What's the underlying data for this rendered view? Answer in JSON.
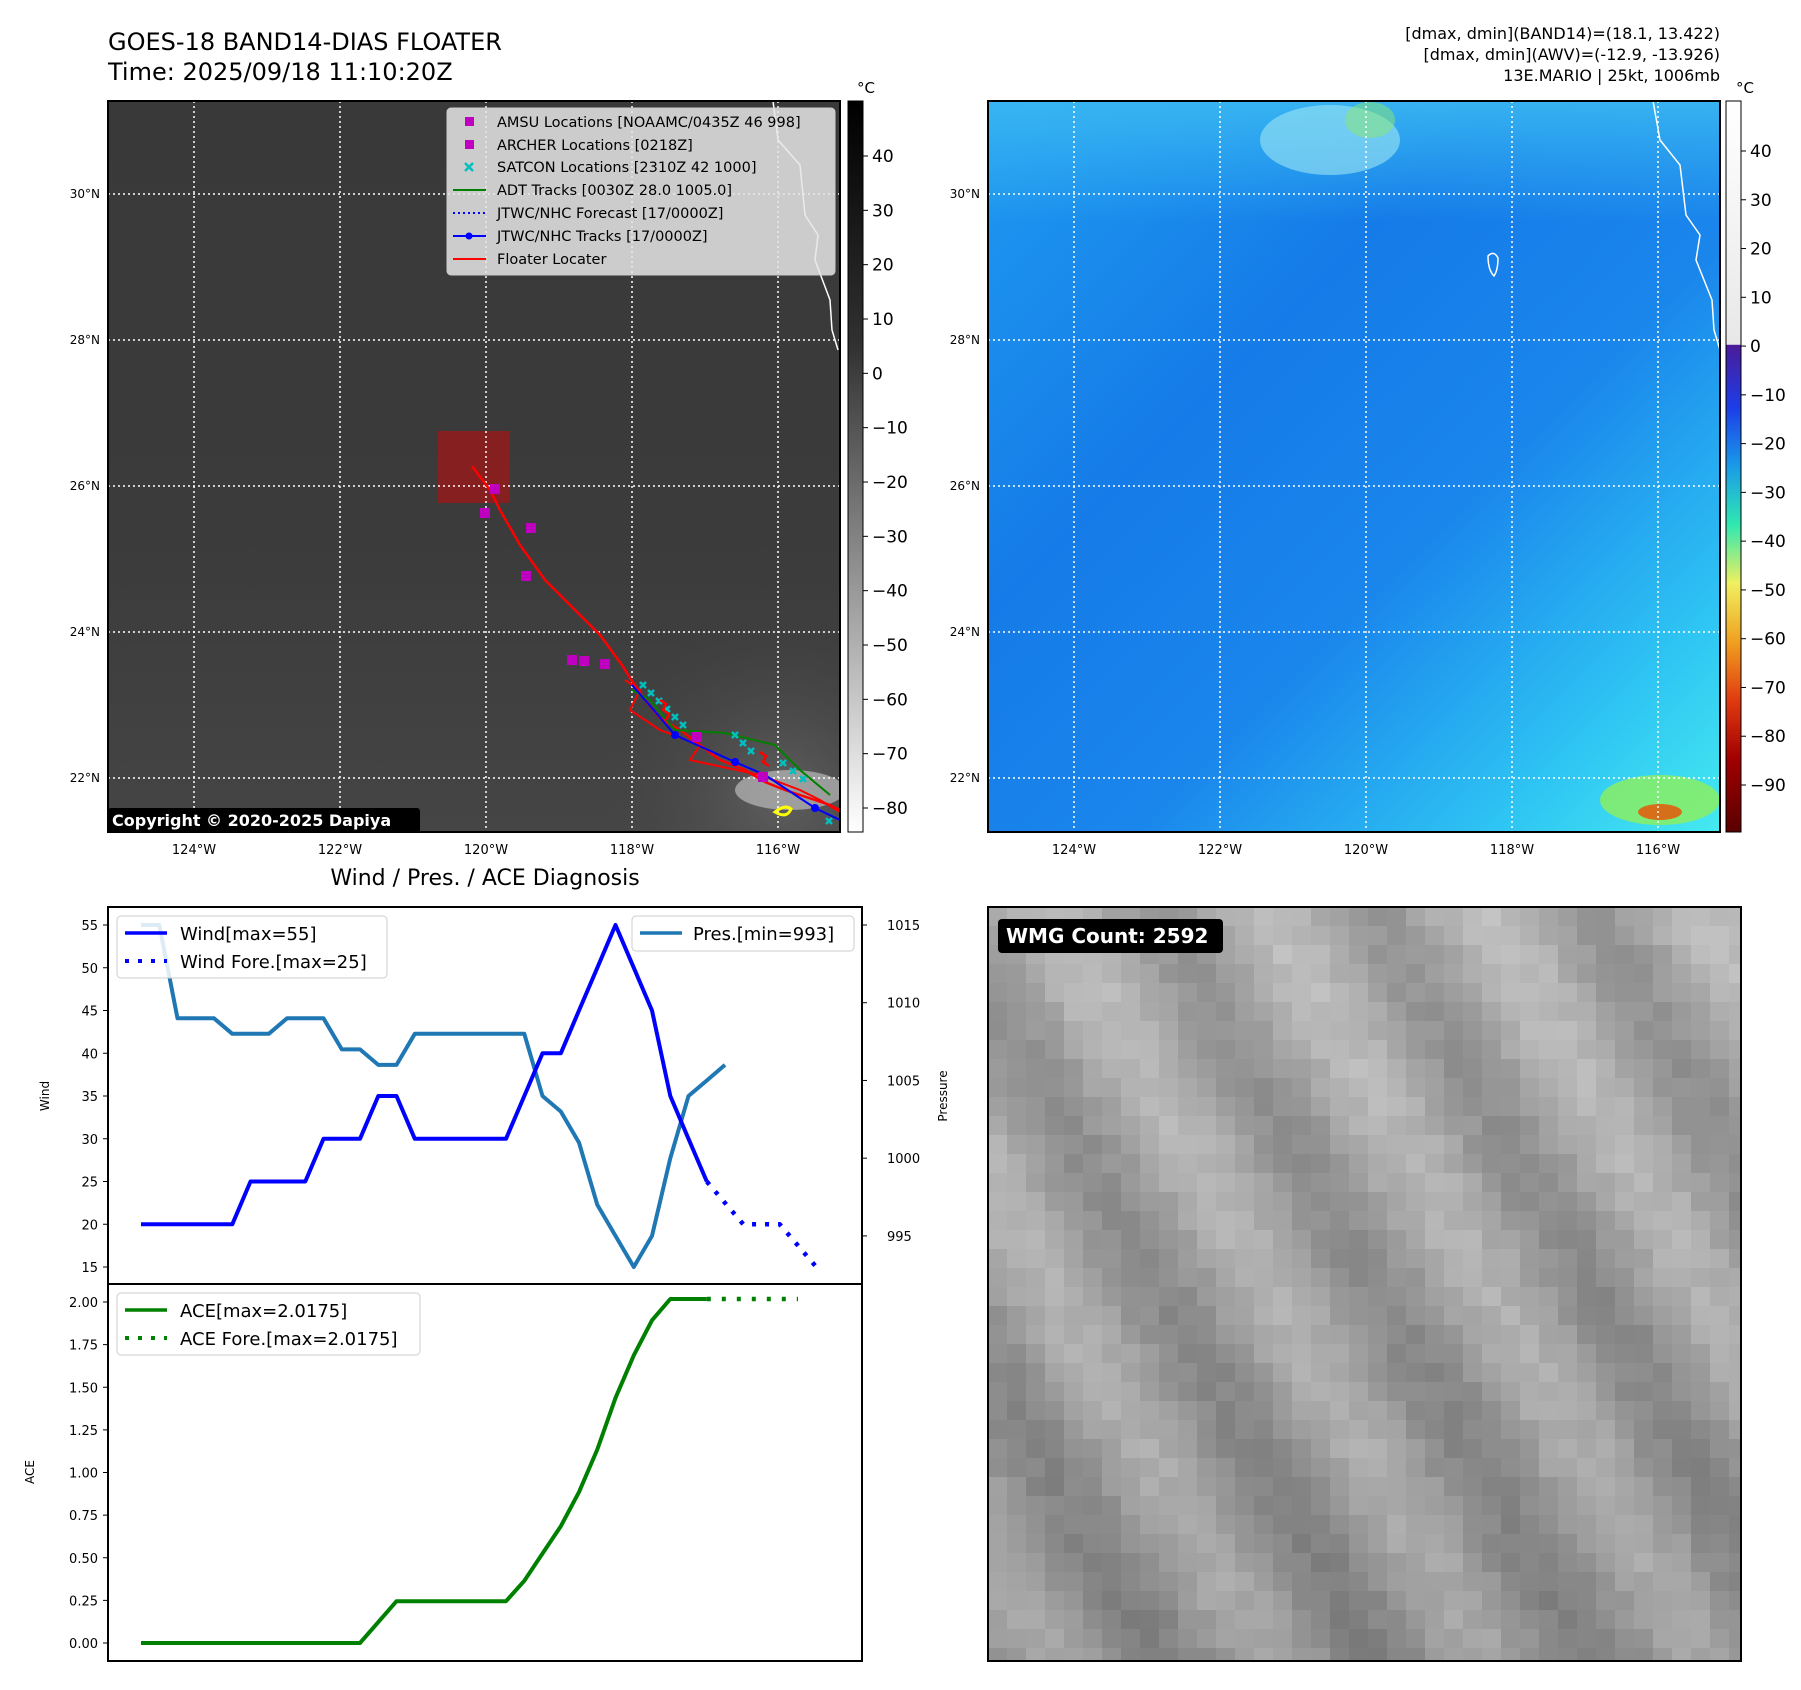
{
  "header": {
    "title_line1": "GOES-18 BAND14-DIAS FLOATER",
    "title_line2": "Time: 2025/09/18 11:10:20Z",
    "info_line1": "[dmax, dmin](BAND14)=(18.1, 13.422)",
    "info_line2": "[dmax, dmin](AWV)=(-12.9, -13.926)",
    "info_line3": "13E.MARIO | 25kt, 1006mb"
  },
  "copyright": "Copyright © 2020-2025 Dapiya",
  "wmg_label": "WMG Count: 2592",
  "colors": {
    "amsu": "#c000c0",
    "archer": "#c000c0",
    "satcon": "#00b5b5",
    "adt": "#008000",
    "jtwc": "#0000ff",
    "floater": "#ff0000",
    "wind": "#0000ff",
    "pressure": "#1f77b4",
    "ace": "#008000"
  },
  "map": {
    "lon_ticks": [
      "124°W",
      "122°W",
      "120°W",
      "118°W",
      "116°W"
    ],
    "lat_ticks": [
      "30°N",
      "28°N",
      "26°N",
      "24°N",
      "22°N"
    ],
    "legend": [
      {
        "label": "AMSU Locations [NOAAMC/0435Z 46 998]",
        "marker": "square"
      },
      {
        "label": "ARCHER Locations [0218Z]",
        "marker": "square"
      },
      {
        "label": "SATCON Locations [2310Z 42 1000]",
        "marker": "x"
      },
      {
        "label": "ADT Tracks [0030Z 28.0 1005.0]",
        "marker": "line"
      },
      {
        "label": "JTWC/NHC Forecast [17/0000Z]",
        "marker": "dotted"
      },
      {
        "label": "JTWC/NHC Tracks [17/0000Z]",
        "marker": "line-dot"
      },
      {
        "label": "Floater Locater",
        "marker": "line"
      }
    ],
    "cbar1": {
      "unit": "°C",
      "ticks": [
        "40",
        "30",
        "20",
        "10",
        "0",
        "−10",
        "−20",
        "−30",
        "−40",
        "−50",
        "−60",
        "−70",
        "−80"
      ]
    },
    "cbar2": {
      "unit": "°C",
      "ticks": [
        "40",
        "30",
        "20",
        "10",
        "0",
        "−10",
        "−20",
        "−30",
        "−40",
        "−50",
        "−60",
        "−70",
        "−80",
        "−90"
      ]
    }
  },
  "chart_data": [
    {
      "type": "line",
      "title": "Wind / Pres. / ACE Diagnosis",
      "ylabel": "Wind",
      "y2label": "Pressure",
      "ylim": [
        15,
        55
      ],
      "y2lim": [
        993,
        1015
      ],
      "yticks": [
        "15",
        "20",
        "25",
        "30",
        "35",
        "40",
        "45",
        "50",
        "55"
      ],
      "y2ticks": [
        "995",
        "1000",
        "1005",
        "1010",
        "1015"
      ],
      "legend": [
        "Wind[max=55]",
        "Wind Fore.[max=25]",
        "Pres.[min=993]"
      ],
      "series": [
        {
          "name": "Wind[max=55]",
          "values": [
            20,
            20,
            20,
            20,
            20,
            20,
            25,
            25,
            25,
            25,
            30,
            30,
            30,
            35,
            35,
            30,
            30,
            30,
            30,
            30,
            30,
            35,
            40,
            40,
            45,
            50,
            55,
            50,
            45,
            35,
            30,
            25
          ]
        },
        {
          "name": "Wind Fore.[max=25]",
          "x_start": 31,
          "values": [
            25,
            22.5,
            20,
            20,
            20,
            17.5,
            15
          ]
        },
        {
          "name": "Pres.[min=993]",
          "values": [
            1015,
            1015,
            1009,
            1009,
            1009,
            1008,
            1008,
            1008,
            1009,
            1009,
            1009,
            1007,
            1007,
            1006,
            1006,
            1008,
            1008,
            1008,
            1008,
            1008,
            1008,
            1008,
            1004,
            1003,
            1001,
            997,
            995,
            993,
            995,
            1000,
            1004,
            1005,
            1006
          ]
        }
      ]
    },
    {
      "type": "line",
      "ylabel": "ACE",
      "ylim": [
        0,
        2
      ],
      "yticks": [
        "0.00",
        "0.25",
        "0.50",
        "0.75",
        "1.00",
        "1.25",
        "1.50",
        "1.75",
        "2.00"
      ],
      "legend": [
        "ACE[max=2.0175]",
        "ACE Fore.[max=2.0175]"
      ],
      "series": [
        {
          "name": "ACE[max=2.0175]",
          "values": [
            0,
            0,
            0,
            0,
            0,
            0,
            0,
            0,
            0,
            0,
            0,
            0,
            0,
            0.1225,
            0.245,
            0.245,
            0.245,
            0.245,
            0.245,
            0.245,
            0.245,
            0.365,
            0.525,
            0.685,
            0.885,
            1.135,
            1.4375,
            1.6875,
            1.8925,
            2.0175,
            2.0175,
            2.0175
          ]
        },
        {
          "name": "ACE Fore.[max=2.0175]",
          "x_start": 31,
          "values": [
            2.0175,
            2.0175,
            2.0175,
            2.0175,
            2.0175,
            2.0175
          ]
        }
      ]
    }
  ]
}
